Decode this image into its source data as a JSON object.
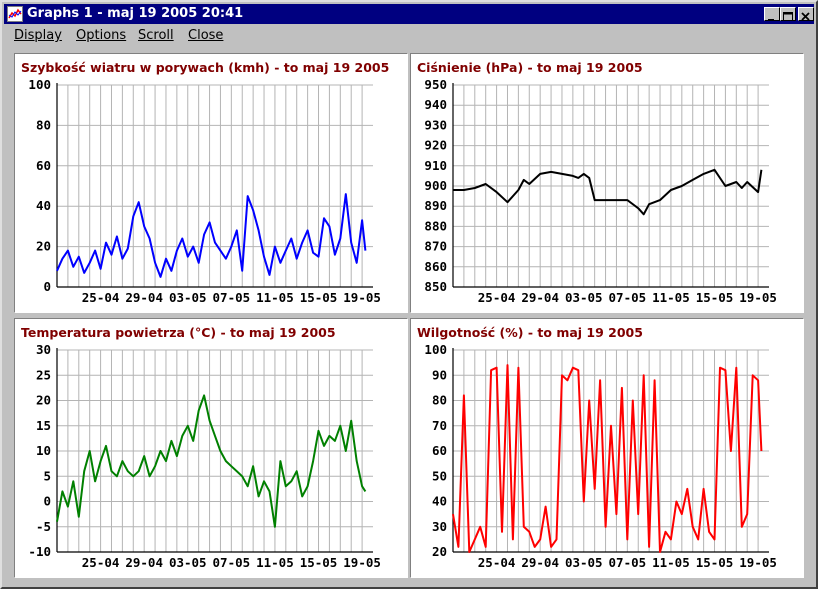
{
  "window": {
    "title": "Graphs 1 - maj 19 2005   20:41",
    "icon": "chart-icon",
    "buttons": [
      "minimize-icon",
      "maximize-icon",
      "close-icon"
    ]
  },
  "menu": [
    {
      "label": "Display",
      "name": "menu-display"
    },
    {
      "label": "Options",
      "name": "menu-options"
    },
    {
      "label": "Scroll",
      "name": "menu-scroll"
    },
    {
      "label": "Close",
      "name": "menu-close"
    }
  ],
  "colors": {
    "title_bar": "#000080",
    "chart_title": "#800000",
    "grid": "#b4b4b4"
  },
  "chart_data": [
    {
      "type": "line",
      "title": "Szybkość wiatru w porywach (kmh) - to maj 19 2005",
      "xlabel": "",
      "ylabel": "",
      "ylim": [
        0,
        100
      ],
      "yticks": [
        0,
        20,
        40,
        60,
        80,
        100
      ],
      "x_tick_labels": [
        "25-04",
        "29-04",
        "03-05",
        "07-05",
        "11-05",
        "15-05",
        "19-05"
      ],
      "x_tick_days": [
        4,
        8,
        12,
        16,
        20,
        24,
        28
      ],
      "xlim_days": [
        0,
        29
      ],
      "grid": true,
      "series": [
        {
          "color": "#0000ff",
          "x": [
            0,
            0.5,
            1,
            1.5,
            2,
            2.5,
            3,
            3.5,
            4,
            4.5,
            5,
            5.5,
            6,
            6.5,
            7,
            7.5,
            8,
            8.5,
            9,
            9.5,
            10,
            10.5,
            11,
            11.5,
            12,
            12.5,
            13,
            13.5,
            14,
            14.5,
            15,
            15.5,
            16,
            16.5,
            17,
            17.5,
            18,
            18.5,
            19,
            19.5,
            20,
            20.5,
            21,
            21.5,
            22,
            22.5,
            23,
            23.5,
            24,
            24.5,
            25,
            25.5,
            26,
            26.5,
            27,
            27.5,
            28,
            28.3
          ],
          "y": [
            8,
            14,
            18,
            10,
            15,
            7,
            12,
            18,
            9,
            22,
            16,
            25,
            14,
            19,
            35,
            42,
            30,
            24,
            12,
            5,
            14,
            8,
            18,
            24,
            15,
            20,
            12,
            26,
            32,
            22,
            18,
            14,
            20,
            28,
            8,
            45,
            38,
            28,
            15,
            6,
            20,
            12,
            18,
            24,
            14,
            22,
            28,
            17,
            15,
            34,
            30,
            16,
            24,
            46,
            22,
            12,
            33,
            18
          ]
        }
      ]
    },
    {
      "type": "line",
      "title": "Ciśnienie (hPa) - to maj 19 2005",
      "xlabel": "",
      "ylabel": "",
      "ylim": [
        850,
        950
      ],
      "yticks": [
        850,
        860,
        870,
        880,
        890,
        900,
        910,
        920,
        930,
        940,
        950
      ],
      "x_tick_labels": [
        "25-04",
        "29-04",
        "03-05",
        "07-05",
        "11-05",
        "15-05",
        "19-05"
      ],
      "x_tick_days": [
        4,
        8,
        12,
        16,
        20,
        24,
        28
      ],
      "xlim_days": [
        0,
        29
      ],
      "grid": true,
      "series": [
        {
          "color": "#000000",
          "x": [
            0,
            1,
            2,
            3,
            4,
            5,
            6,
            6.5,
            7,
            8,
            9,
            10,
            11,
            11.5,
            12,
            12.5,
            13,
            14,
            15,
            16,
            17,
            17.5,
            18,
            19,
            20,
            21,
            22,
            23,
            24,
            25,
            26,
            26.5,
            27,
            28,
            28.3
          ],
          "y": [
            898,
            898,
            899,
            901,
            897,
            892,
            898,
            903,
            901,
            906,
            907,
            906,
            905,
            904,
            906,
            904,
            893,
            893,
            893,
            893,
            889,
            886,
            891,
            893,
            898,
            900,
            903,
            906,
            908,
            900,
            902,
            899,
            902,
            897,
            908
          ]
        }
      ]
    },
    {
      "type": "line",
      "title": "Temperatura powietrza (°C) - to maj 19 2005",
      "xlabel": "",
      "ylabel": "",
      "ylim": [
        -10,
        30
      ],
      "yticks": [
        -10,
        -5,
        0,
        5,
        10,
        15,
        20,
        25,
        30
      ],
      "x_tick_labels": [
        "25-04",
        "29-04",
        "03-05",
        "07-05",
        "11-05",
        "15-05",
        "19-05"
      ],
      "x_tick_days": [
        4,
        8,
        12,
        16,
        20,
        24,
        28
      ],
      "xlim_days": [
        0,
        29
      ],
      "grid": true,
      "series": [
        {
          "color": "#008000",
          "x": [
            0,
            0.5,
            1,
            1.5,
            2,
            2.5,
            3,
            3.5,
            4,
            4.5,
            5,
            5.5,
            6,
            6.5,
            7,
            7.5,
            8,
            8.5,
            9,
            9.5,
            10,
            10.5,
            11,
            11.5,
            12,
            12.5,
            13,
            13.5,
            14,
            14.5,
            15,
            15.5,
            16,
            16.5,
            17,
            17.5,
            18,
            18.5,
            19,
            19.5,
            20,
            20.5,
            21,
            21.5,
            22,
            22.5,
            23,
            23.5,
            24,
            24.5,
            25,
            25.5,
            26,
            26.5,
            27,
            27.5,
            28,
            28.3
          ],
          "y": [
            -4,
            2,
            -1,
            4,
            -3,
            6,
            10,
            4,
            8,
            11,
            6,
            5,
            8,
            6,
            5,
            6,
            9,
            5,
            7,
            10,
            8,
            12,
            9,
            13,
            15,
            12,
            18,
            21,
            16,
            13,
            10,
            8,
            7,
            6,
            5,
            3,
            7,
            1,
            4,
            2,
            -5,
            8,
            3,
            4,
            6,
            1,
            3,
            8,
            14,
            11,
            13,
            12,
            15,
            10,
            16,
            8,
            3,
            2
          ]
        }
      ]
    },
    {
      "type": "line",
      "title": "Wilgotność (%) - to maj 19 2005",
      "xlabel": "",
      "ylabel": "",
      "ylim": [
        20,
        100
      ],
      "yticks": [
        20,
        30,
        40,
        50,
        60,
        70,
        80,
        90,
        100
      ],
      "x_tick_labels": [
        "25-04",
        "29-04",
        "03-05",
        "07-05",
        "11-05",
        "15-05",
        "19-05"
      ],
      "x_tick_days": [
        4,
        8,
        12,
        16,
        20,
        24,
        28
      ],
      "xlim_days": [
        0,
        29
      ],
      "grid": true,
      "series": [
        {
          "color": "#ff0000",
          "x": [
            0,
            0.5,
            1,
            1.5,
            2,
            2.5,
            3,
            3.5,
            4,
            4.5,
            5,
            5.5,
            6,
            6.5,
            7,
            7.5,
            8,
            8.5,
            9,
            9.5,
            10,
            10.5,
            11,
            11.5,
            12,
            12.5,
            13,
            13.5,
            14,
            14.5,
            15,
            15.5,
            16,
            16.5,
            17,
            17.5,
            18,
            18.5,
            19,
            19.5,
            20,
            20.5,
            21,
            21.5,
            22,
            22.5,
            23,
            23.5,
            24,
            24.5,
            25,
            25.5,
            26,
            26.5,
            27,
            27.5,
            28,
            28.3
          ],
          "y": [
            35,
            22,
            82,
            20,
            25,
            30,
            22,
            92,
            93,
            28,
            94,
            25,
            93,
            30,
            28,
            22,
            25,
            38,
            22,
            25,
            90,
            88,
            93,
            92,
            40,
            80,
            45,
            88,
            30,
            70,
            35,
            85,
            25,
            80,
            35,
            90,
            22,
            88,
            20,
            28,
            25,
            40,
            35,
            45,
            30,
            25,
            45,
            28,
            25,
            93,
            92,
            60,
            93,
            30,
            35,
            90,
            88,
            60
          ]
        }
      ]
    }
  ]
}
